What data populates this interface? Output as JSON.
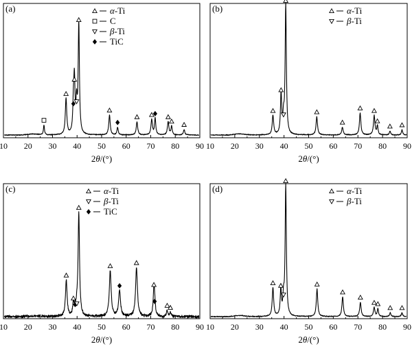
{
  "chart_data": [
    {
      "panel_label": "(a)",
      "type": "line",
      "xlabel": "2θ/(°)",
      "xlim": [
        10,
        90
      ],
      "xticks": [
        10,
        20,
        30,
        40,
        50,
        60,
        70,
        80,
        90
      ],
      "legend": [
        {
          "symbol": "triangle-up",
          "greek": "α",
          "suffix": "-Ti"
        },
        {
          "symbol": "square",
          "greek": "",
          "suffix": "C"
        },
        {
          "symbol": "triangle-down",
          "greek": "β",
          "suffix": "-Ti"
        },
        {
          "symbol": "diamond",
          "greek": "",
          "suffix": "TiC"
        }
      ],
      "peaks": [
        {
          "x": 26.5,
          "y": 0.09,
          "w": 0.25,
          "marker": "square"
        },
        {
          "x": 35.5,
          "y": 0.33,
          "w": 0.35,
          "marker": "triangle-up"
        },
        {
          "x": 38.5,
          "y": 0.24,
          "w": 0.3,
          "marker": "diamond"
        },
        {
          "x": 38.9,
          "y": 0.46,
          "w": 0.3,
          "marker": "triangle-up"
        },
        {
          "x": 39.8,
          "y": 0.26,
          "w": 0.3,
          "marker": "triangle-down"
        },
        {
          "x": 40.7,
          "y": 1.0,
          "w": 0.3,
          "marker": "triangle-up"
        },
        {
          "x": 53.2,
          "y": 0.18,
          "w": 0.35,
          "marker": "triangle-up"
        },
        {
          "x": 56.5,
          "y": 0.07,
          "w": 0.3,
          "marker": "diamond"
        },
        {
          "x": 64.4,
          "y": 0.12,
          "w": 0.35,
          "marker": "triangle-up"
        },
        {
          "x": 70.4,
          "y": 0.14,
          "w": 0.35,
          "marker": "triangle-up"
        },
        {
          "x": 71.8,
          "y": 0.15,
          "w": 0.3,
          "marker": "diamond"
        },
        {
          "x": 77.1,
          "y": 0.12,
          "w": 0.35,
          "marker": "triangle-up"
        },
        {
          "x": 78.5,
          "y": 0.08,
          "w": 0.3,
          "marker": "triangle-up"
        },
        {
          "x": 83.6,
          "y": 0.05,
          "w": 0.3,
          "marker": "triangle-up"
        }
      ]
    },
    {
      "panel_label": "(b)",
      "type": "line",
      "xlabel": "2θ/(°)",
      "xlim": [
        10,
        90
      ],
      "xticks": [
        10,
        20,
        30,
        40,
        50,
        60,
        70,
        80,
        90
      ],
      "legend": [
        {
          "symbol": "triangle-up",
          "greek": "α",
          "suffix": "-Ti"
        },
        {
          "symbol": "triangle-down",
          "greek": "β",
          "suffix": "-Ti"
        }
      ],
      "peaks": [
        {
          "x": 35.5,
          "y": 0.15,
          "w": 0.35,
          "marker": "triangle-up"
        },
        {
          "x": 38.8,
          "y": 0.31,
          "w": 0.3,
          "marker": "triangle-up"
        },
        {
          "x": 39.8,
          "y": 0.12,
          "w": 0.3,
          "marker": "triangle-down"
        },
        {
          "x": 40.7,
          "y": 1.0,
          "w": 0.3,
          "marker": "triangle-up"
        },
        {
          "x": 53.3,
          "y": 0.14,
          "w": 0.35,
          "marker": "triangle-up"
        },
        {
          "x": 63.7,
          "y": 0.06,
          "w": 0.35,
          "marker": "triangle-up"
        },
        {
          "x": 70.9,
          "y": 0.17,
          "w": 0.35,
          "marker": "triangle-up"
        },
        {
          "x": 76.6,
          "y": 0.15,
          "w": 0.35,
          "marker": "triangle-up"
        },
        {
          "x": 77.9,
          "y": 0.07,
          "w": 0.3,
          "marker": "triangle-up"
        },
        {
          "x": 83.0,
          "y": 0.03,
          "w": 0.3,
          "marker": "triangle-up"
        },
        {
          "x": 87.9,
          "y": 0.04,
          "w": 0.3,
          "marker": "triangle-up"
        }
      ]
    },
    {
      "panel_label": "(c)",
      "type": "line",
      "xlabel": "2θ/(°)",
      "xlim": [
        10,
        90
      ],
      "xticks": [
        10,
        20,
        30,
        40,
        50,
        60,
        70,
        80,
        90
      ],
      "legend": [
        {
          "symbol": "triangle-up",
          "greek": "α",
          "suffix": "-Ti"
        },
        {
          "symbol": "triangle-down",
          "greek": "β",
          "suffix": "-Ti"
        },
        {
          "symbol": "diamond",
          "greek": "",
          "suffix": "TiC"
        }
      ],
      "peaks": [
        {
          "x": 35.6,
          "y": 0.35,
          "w": 0.4,
          "marker": "triangle-up"
        },
        {
          "x": 38.5,
          "y": 0.13,
          "w": 0.3,
          "marker": "triangle-up"
        },
        {
          "x": 39.2,
          "y": 0.07,
          "w": 0.3,
          "marker": "diamond"
        },
        {
          "x": 39.9,
          "y": 0.08,
          "w": 0.3,
          "marker": "triangle-down"
        },
        {
          "x": 40.7,
          "y": 1.0,
          "w": 0.35,
          "marker": "triangle-up"
        },
        {
          "x": 53.5,
          "y": 0.44,
          "w": 0.45,
          "marker": "triangle-up"
        },
        {
          "x": 57.3,
          "y": 0.25,
          "w": 0.45,
          "marker": "diamond"
        },
        {
          "x": 64.2,
          "y": 0.47,
          "w": 0.45,
          "marker": "triangle-up"
        },
        {
          "x": 71.3,
          "y": 0.26,
          "w": 0.35,
          "marker": "triangle-up"
        },
        {
          "x": 71.6,
          "y": 0.1,
          "w": 0.3,
          "marker": "diamond"
        },
        {
          "x": 76.7,
          "y": 0.06,
          "w": 0.35,
          "marker": "triangle-up"
        },
        {
          "x": 78.0,
          "y": 0.04,
          "w": 0.3,
          "marker": "triangle-up"
        }
      ]
    },
    {
      "panel_label": "(d)",
      "type": "line",
      "xlabel": "2θ/(°)",
      "xlim": [
        10,
        90
      ],
      "xticks": [
        10,
        20,
        30,
        40,
        50,
        60,
        70,
        80,
        90
      ],
      "legend": [
        {
          "symbol": "triangle-up",
          "greek": "α",
          "suffix": "-Ti"
        },
        {
          "symbol": "triangle-down",
          "greek": "β",
          "suffix": "-Ti"
        }
      ],
      "peaks": [
        {
          "x": 35.5,
          "y": 0.22,
          "w": 0.35,
          "marker": "triangle-up"
        },
        {
          "x": 38.7,
          "y": 0.2,
          "w": 0.3,
          "marker": "triangle-up"
        },
        {
          "x": 39.8,
          "y": 0.13,
          "w": 0.3,
          "marker": "triangle-down"
        },
        {
          "x": 40.7,
          "y": 1.0,
          "w": 0.3,
          "marker": "triangle-up"
        },
        {
          "x": 53.4,
          "y": 0.21,
          "w": 0.35,
          "marker": "triangle-up"
        },
        {
          "x": 63.8,
          "y": 0.15,
          "w": 0.35,
          "marker": "triangle-up"
        },
        {
          "x": 71.0,
          "y": 0.11,
          "w": 0.35,
          "marker": "triangle-up"
        },
        {
          "x": 76.6,
          "y": 0.07,
          "w": 0.35,
          "marker": "triangle-up"
        },
        {
          "x": 78.1,
          "y": 0.06,
          "w": 0.3,
          "marker": "triangle-up"
        },
        {
          "x": 83.1,
          "y": 0.03,
          "w": 0.3,
          "marker": "triangle-up"
        },
        {
          "x": 87.9,
          "y": 0.03,
          "w": 0.3,
          "marker": "triangle-up"
        }
      ]
    }
  ]
}
